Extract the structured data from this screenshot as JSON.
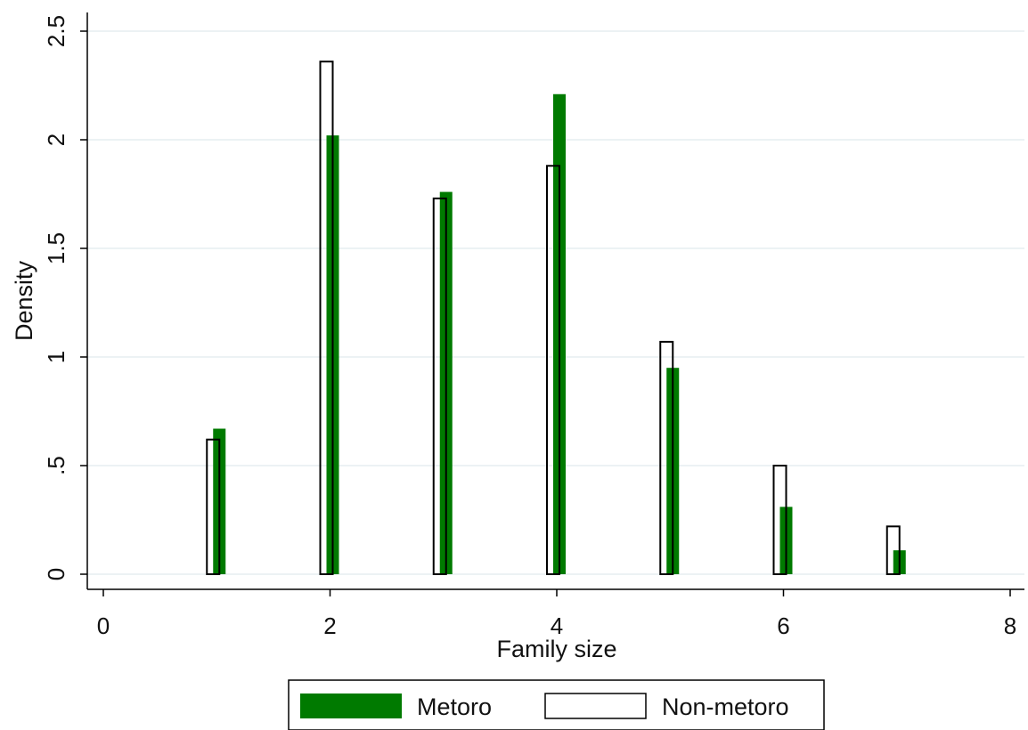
{
  "chart_data": {
    "type": "bar",
    "title": "",
    "xlabel": "Family size",
    "ylabel": "Density",
    "xlim": [
      0,
      8
    ],
    "ylim": [
      0,
      2.5
    ],
    "xticks": [
      0,
      2,
      4,
      6,
      8
    ],
    "xtick_labels": [
      "0",
      "2",
      "4",
      "6",
      "8"
    ],
    "yticks": [
      0,
      0.5,
      1,
      1.5,
      2,
      2.5
    ],
    "ytick_labels": [
      "0",
      ".5",
      "1",
      "1.5",
      "2",
      "2.5"
    ],
    "grid": true,
    "legend_position": "bottom",
    "x": [
      1,
      2,
      3,
      4,
      5,
      6,
      7
    ],
    "series": [
      {
        "name": "Metoro",
        "color": "#007a00",
        "fill": "solid",
        "values": [
          0.67,
          2.02,
          1.76,
          2.21,
          0.95,
          0.31,
          0.11
        ]
      },
      {
        "name": "Non-metoro",
        "color": "#000000",
        "fill": "outline",
        "values": [
          0.62,
          2.36,
          1.73,
          1.88,
          1.07,
          0.5,
          0.22
        ]
      }
    ]
  }
}
